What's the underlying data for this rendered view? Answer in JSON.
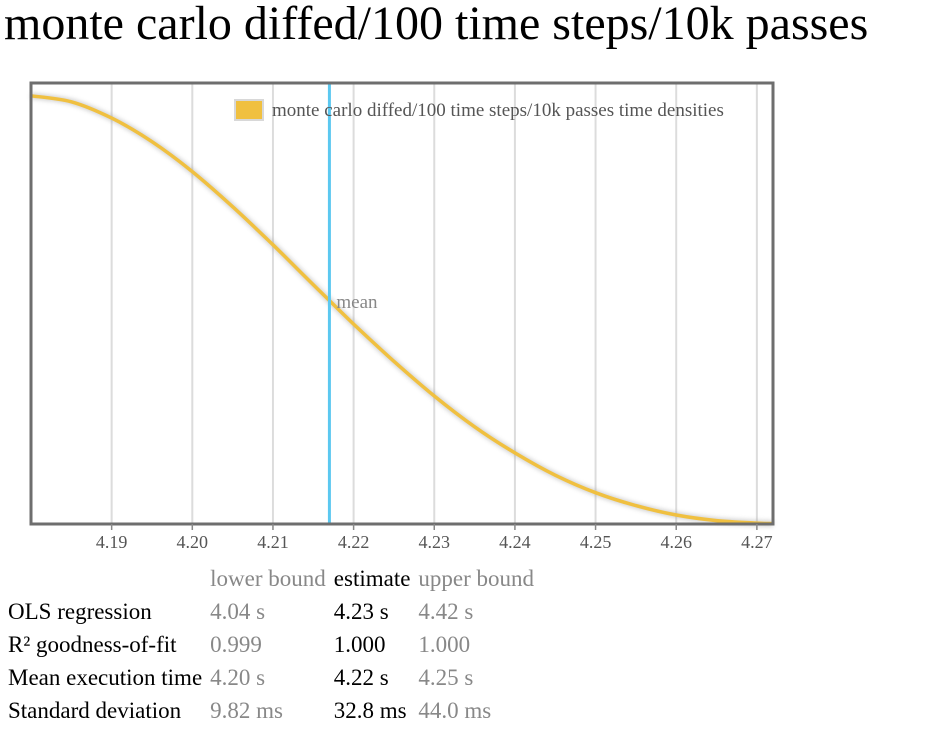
{
  "title": "monte carlo diffed/100 time steps/10k passes",
  "chart_data": {
    "type": "area",
    "legend": {
      "label": "monte carlo diffed/100 time steps/10k passes time densities",
      "placement": "top-right"
    },
    "x_ticks": [
      4.19,
      4.2,
      4.21,
      4.22,
      4.23,
      4.24,
      4.25,
      4.26,
      4.27
    ],
    "xlim": [
      4.18,
      4.272
    ],
    "ylim": [
      0,
      1.03
    ],
    "grid": "vertical",
    "series": [
      {
        "color": "#f0c040",
        "x": [
          4.18,
          4.185,
          4.19,
          4.195,
          4.2,
          4.205,
          4.21,
          4.215,
          4.22,
          4.225,
          4.23,
          4.235,
          4.24,
          4.245,
          4.25,
          4.255,
          4.26,
          4.265,
          4.27,
          4.272
        ],
        "y": [
          1.0,
          0.986,
          0.948,
          0.893,
          0.823,
          0.741,
          0.652,
          0.559,
          0.467,
          0.38,
          0.299,
          0.227,
          0.166,
          0.114,
          0.073,
          0.043,
          0.021,
          0.008,
          0.002,
          0.001
        ]
      }
    ],
    "mean": {
      "x": 4.217,
      "label": "mean",
      "color": "#5bc8f0"
    }
  },
  "table": {
    "headers": [
      "lower bound",
      "estimate",
      "upper bound"
    ],
    "rows": [
      {
        "label": "OLS regression",
        "lower": "4.04 s",
        "estimate": "4.23 s",
        "upper": "4.42 s"
      },
      {
        "label": "R² goodness-of-fit",
        "lower": "0.999",
        "estimate": "1.000",
        "upper": "1.000"
      },
      {
        "label": "Mean execution time",
        "lower": "4.20 s",
        "estimate": "4.22 s",
        "upper": "4.25 s"
      },
      {
        "label": "Standard deviation",
        "lower": "9.82 ms",
        "estimate": "32.8 ms",
        "upper": "44.0 ms"
      }
    ]
  }
}
